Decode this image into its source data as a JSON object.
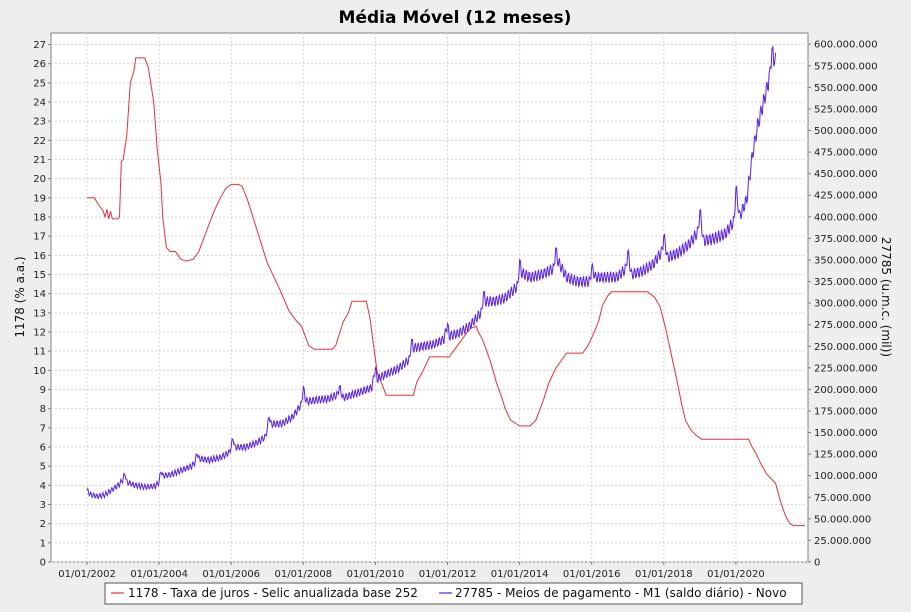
{
  "chart_data": {
    "type": "line",
    "title": "Média Móvel (12 meses)",
    "left_axis": {
      "label": "1178 (% a.a.)",
      "ylim": [
        0,
        27.6
      ],
      "ticks": [
        0,
        1,
        2,
        3,
        4,
        5,
        6,
        7,
        8,
        9,
        10,
        11,
        12,
        13,
        14,
        15,
        16,
        17,
        18,
        19,
        20,
        21,
        22,
        23,
        24,
        25,
        26,
        27
      ]
    },
    "right_axis": {
      "label": "27785 (u.m.c. (mil))",
      "ylim": [
        0,
        613000000
      ],
      "ticks": [
        0,
        25000000,
        50000000,
        75000000,
        100000000,
        125000000,
        150000000,
        175000000,
        200000000,
        225000000,
        250000000,
        275000000,
        300000000,
        325000000,
        350000000,
        375000000,
        400000000,
        425000000,
        450000000,
        475000000,
        500000000,
        525000000,
        550000000,
        575000000,
        600000000
      ],
      "tick_labels": [
        "0",
        "25.000.000",
        "50.000.000",
        "75.000.000",
        "100.000.000",
        "125.000.000",
        "150.000.000",
        "175.000.000",
        "200.000.000",
        "225.000.000",
        "250.000.000",
        "275.000.000",
        "300.000.000",
        "325.000.000",
        "350.000.000",
        "375.000.000",
        "400.000.000",
        "425.000.000",
        "450.000.000",
        "475.000.000",
        "500.000.000",
        "525.000.000",
        "550.000.000",
        "575.000.000",
        "600.000.000"
      ]
    },
    "x_axis": {
      "xlim": [
        2001.0,
        2022.0
      ],
      "ticks": [
        2002,
        2004,
        2006,
        2008,
        2010,
        2012,
        2014,
        2016,
        2018,
        2020
      ],
      "tick_labels": [
        "01/01/2002",
        "01/01/2004",
        "01/01/2006",
        "01/01/2008",
        "01/01/2010",
        "01/01/2012",
        "01/01/2014",
        "01/01/2016",
        "01/01/2018",
        "01/01/2020"
      ]
    },
    "grid": true,
    "legend_position": "bottom",
    "series": [
      {
        "name": "1178 - Taxa de juros - Selic anualizada base 252",
        "axis": "left",
        "color": "#e0323c",
        "points": [
          [
            2002.0,
            19.0
          ],
          [
            2002.2,
            19.0
          ],
          [
            2002.3,
            18.7
          ],
          [
            2002.45,
            18.3
          ],
          [
            2002.5,
            18.0
          ],
          [
            2002.55,
            18.4
          ],
          [
            2002.6,
            17.9
          ],
          [
            2002.65,
            18.3
          ],
          [
            2002.7,
            17.9
          ],
          [
            2002.85,
            17.9
          ],
          [
            2002.9,
            18.0
          ],
          [
            2002.95,
            20.9
          ],
          [
            2003.0,
            21.0
          ],
          [
            2003.1,
            22.2
          ],
          [
            2003.2,
            25.0
          ],
          [
            2003.3,
            25.6
          ],
          [
            2003.35,
            26.3
          ],
          [
            2003.6,
            26.3
          ],
          [
            2003.7,
            25.8
          ],
          [
            2003.85,
            24.0
          ],
          [
            2003.95,
            21.5
          ],
          [
            2004.05,
            19.8
          ],
          [
            2004.1,
            18.0
          ],
          [
            2004.2,
            16.4
          ],
          [
            2004.3,
            16.2
          ],
          [
            2004.45,
            16.2
          ],
          [
            2004.6,
            15.8
          ],
          [
            2004.75,
            15.7
          ],
          [
            2004.95,
            15.8
          ],
          [
            2005.1,
            16.2
          ],
          [
            2005.3,
            17.2
          ],
          [
            2005.5,
            18.2
          ],
          [
            2005.7,
            19.0
          ],
          [
            2005.85,
            19.5
          ],
          [
            2006.0,
            19.7
          ],
          [
            2006.2,
            19.7
          ],
          [
            2006.3,
            19.6
          ],
          [
            2006.45,
            18.9
          ],
          [
            2006.6,
            18.0
          ],
          [
            2006.8,
            16.8
          ],
          [
            2007.0,
            15.6
          ],
          [
            2007.2,
            14.8
          ],
          [
            2007.4,
            14.0
          ],
          [
            2007.6,
            13.1
          ],
          [
            2007.8,
            12.6
          ],
          [
            2007.95,
            12.3
          ],
          [
            2008.05,
            11.8
          ],
          [
            2008.15,
            11.3
          ],
          [
            2008.3,
            11.1
          ],
          [
            2008.8,
            11.1
          ],
          [
            2008.9,
            11.3
          ],
          [
            2009.0,
            11.9
          ],
          [
            2009.1,
            12.5
          ],
          [
            2009.25,
            13.0
          ],
          [
            2009.35,
            13.6
          ],
          [
            2009.75,
            13.6
          ],
          [
            2009.85,
            12.7
          ],
          [
            2009.95,
            11.3
          ],
          [
            2010.05,
            9.9
          ],
          [
            2010.2,
            9.2
          ],
          [
            2010.3,
            8.7
          ],
          [
            2011.05,
            8.7
          ],
          [
            2011.15,
            9.4
          ],
          [
            2011.3,
            9.9
          ],
          [
            2011.5,
            10.7
          ],
          [
            2011.6,
            10.7
          ],
          [
            2011.65,
            10.7
          ],
          [
            2012.05,
            10.7
          ],
          [
            2012.2,
            11.1
          ],
          [
            2012.4,
            11.6
          ],
          [
            2012.55,
            12.0
          ],
          [
            2012.65,
            12.2
          ],
          [
            2012.8,
            12.3
          ],
          [
            2012.85,
            12.0
          ],
          [
            2012.95,
            11.7
          ],
          [
            2013.05,
            11.2
          ],
          [
            2013.2,
            10.4
          ],
          [
            2013.35,
            9.4
          ],
          [
            2013.5,
            8.6
          ],
          [
            2013.6,
            8.0
          ],
          [
            2013.75,
            7.4
          ],
          [
            2014.0,
            7.1
          ],
          [
            2014.3,
            7.1
          ],
          [
            2014.45,
            7.4
          ],
          [
            2014.65,
            8.4
          ],
          [
            2014.8,
            9.3
          ],
          [
            2015.0,
            10.1
          ],
          [
            2015.15,
            10.5
          ],
          [
            2015.3,
            10.9
          ],
          [
            2015.75,
            10.9
          ],
          [
            2015.9,
            11.3
          ],
          [
            2016.05,
            11.9
          ],
          [
            2016.2,
            12.6
          ],
          [
            2016.3,
            13.4
          ],
          [
            2016.45,
            13.9
          ],
          [
            2016.55,
            14.1
          ],
          [
            2017.0,
            14.1
          ],
          [
            2017.55,
            14.1
          ],
          [
            2017.75,
            13.8
          ],
          [
            2017.9,
            13.3
          ],
          [
            2018.05,
            12.2
          ],
          [
            2018.2,
            10.9
          ],
          [
            2018.35,
            9.6
          ],
          [
            2018.5,
            8.2
          ],
          [
            2018.6,
            7.4
          ],
          [
            2018.75,
            6.9
          ],
          [
            2018.9,
            6.6
          ],
          [
            2019.05,
            6.4
          ],
          [
            2019.5,
            6.4
          ],
          [
            2020.0,
            6.4
          ],
          [
            2020.35,
            6.4
          ],
          [
            2020.45,
            6.0
          ],
          [
            2020.55,
            5.7
          ],
          [
            2020.7,
            5.1
          ],
          [
            2020.85,
            4.6
          ],
          [
            2021.0,
            4.3
          ],
          [
            2021.1,
            4.1
          ],
          [
            2021.2,
            3.4
          ],
          [
            2021.3,
            2.8
          ],
          [
            2021.4,
            2.3
          ],
          [
            2021.5,
            2.0
          ],
          [
            2021.6,
            1.9
          ],
          [
            2021.92,
            1.9
          ]
        ]
      },
      {
        "name": "27785 - Meios de pagamento - M1 (saldo diário) - Novo",
        "axis": "right",
        "color": "#5a1fe0",
        "wiggle_amplitude": 4000000,
        "points": [
          [
            2002.0,
            83000000
          ],
          [
            2002.1,
            78000000
          ],
          [
            2002.3,
            76000000
          ],
          [
            2002.5,
            78000000
          ],
          [
            2002.7,
            84000000
          ],
          [
            2002.9,
            90000000
          ],
          [
            2003.0,
            96000000
          ],
          [
            2003.05,
            103000000
          ],
          [
            2003.1,
            93000000
          ],
          [
            2003.3,
            89000000
          ],
          [
            2003.6,
            87000000
          ],
          [
            2003.9,
            88000000
          ],
          [
            2004.0,
            93000000
          ],
          [
            2004.05,
            106000000
          ],
          [
            2004.1,
            100000000
          ],
          [
            2004.3,
            101000000
          ],
          [
            2004.6,
            106000000
          ],
          [
            2004.9,
            111000000
          ],
          [
            2005.0,
            116000000
          ],
          [
            2005.05,
            127000000
          ],
          [
            2005.1,
            120000000
          ],
          [
            2005.4,
            118000000
          ],
          [
            2005.7,
            121000000
          ],
          [
            2005.95,
            127000000
          ],
          [
            2006.0,
            134000000
          ],
          [
            2006.05,
            144000000
          ],
          [
            2006.1,
            133000000
          ],
          [
            2006.4,
            133000000
          ],
          [
            2006.7,
            138000000
          ],
          [
            2006.95,
            145000000
          ],
          [
            2007.0,
            155000000
          ],
          [
            2007.05,
            170000000
          ],
          [
            2007.1,
            160000000
          ],
          [
            2007.4,
            160000000
          ],
          [
            2007.7,
            168000000
          ],
          [
            2007.95,
            183000000
          ],
          [
            2008.0,
            203000000
          ],
          [
            2008.05,
            190000000
          ],
          [
            2008.1,
            186000000
          ],
          [
            2008.4,
            188000000
          ],
          [
            2008.7,
            189000000
          ],
          [
            2008.95,
            194000000
          ],
          [
            2009.0,
            204000000
          ],
          [
            2009.05,
            196000000
          ],
          [
            2009.1,
            190000000
          ],
          [
            2009.5,
            196000000
          ],
          [
            2009.9,
            202000000
          ],
          [
            2010.0,
            225000000
          ],
          [
            2010.05,
            212000000
          ],
          [
            2010.3,
            218000000
          ],
          [
            2010.6,
            223000000
          ],
          [
            2010.95,
            235000000
          ],
          [
            2011.0,
            258000000
          ],
          [
            2011.05,
            248000000
          ],
          [
            2011.3,
            250000000
          ],
          [
            2011.6,
            252000000
          ],
          [
            2011.9,
            258000000
          ],
          [
            2012.0,
            276000000
          ],
          [
            2012.05,
            262000000
          ],
          [
            2012.3,
            265000000
          ],
          [
            2012.6,
            273000000
          ],
          [
            2012.95,
            290000000
          ],
          [
            2013.0,
            313000000
          ],
          [
            2013.05,
            302000000
          ],
          [
            2013.3,
            302000000
          ],
          [
            2013.6,
            306000000
          ],
          [
            2013.95,
            320000000
          ],
          [
            2014.0,
            350000000
          ],
          [
            2014.05,
            335000000
          ],
          [
            2014.3,
            330000000
          ],
          [
            2014.6,
            333000000
          ],
          [
            2014.95,
            340000000
          ],
          [
            2015.0,
            364000000
          ],
          [
            2015.05,
            350000000
          ],
          [
            2015.3,
            330000000
          ],
          [
            2015.6,
            325000000
          ],
          [
            2015.95,
            325000000
          ],
          [
            2016.0,
            342000000
          ],
          [
            2016.1,
            330000000
          ],
          [
            2016.4,
            330000000
          ],
          [
            2016.7,
            330000000
          ],
          [
            2016.95,
            340000000
          ],
          [
            2017.0,
            360000000
          ],
          [
            2017.1,
            333000000
          ],
          [
            2017.4,
            337000000
          ],
          [
            2017.7,
            345000000
          ],
          [
            2017.95,
            360000000
          ],
          [
            2018.0,
            378000000
          ],
          [
            2018.1,
            353000000
          ],
          [
            2018.4,
            358000000
          ],
          [
            2018.7,
            368000000
          ],
          [
            2018.95,
            383000000
          ],
          [
            2019.0,
            408000000
          ],
          [
            2019.1,
            372000000
          ],
          [
            2019.4,
            375000000
          ],
          [
            2019.7,
            380000000
          ],
          [
            2019.95,
            395000000
          ],
          [
            2020.0,
            434000000
          ],
          [
            2020.1,
            400000000
          ],
          [
            2020.3,
            420000000
          ],
          [
            2020.45,
            470000000
          ],
          [
            2020.6,
            505000000
          ],
          [
            2020.75,
            530000000
          ],
          [
            2020.9,
            555000000
          ],
          [
            2020.95,
            568000000
          ],
          [
            2021.0,
            595000000
          ],
          [
            2021.05,
            580000000
          ],
          [
            2021.1,
            590000000
          ]
        ]
      }
    ]
  }
}
